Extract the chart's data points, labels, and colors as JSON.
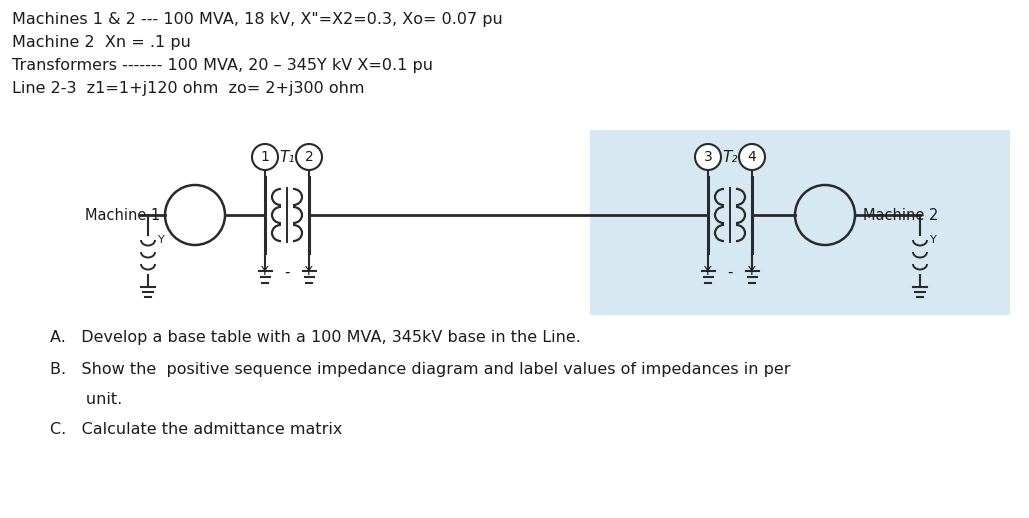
{
  "title_lines": [
    "Machines 1 & 2 --- 100 MVA, 18 kV, X\"=X2=0.3, Xo= 0.07 pu",
    "Machine 2  Xn = .1 pu",
    "Transformers ------- 100 MVA, 20 – 345Y kV X=0.1 pu",
    "Line 2-3  z1=1+j120 ohm  zo= 2+j300 ohm"
  ],
  "bg_color": "#ffffff",
  "text_color": "#1c1c1c",
  "diagram_bg": "#d6e8f2",
  "line_color": "#2a2a2a",
  "questions_A": "A.   Develop a base table with a 100 MVA, 345kV base in the Line.",
  "questions_B1": "B.   Show the  positive sequence impedance diagram and label values of impedances in per",
  "questions_B2": "       unit.",
  "questions_C": "C.   Calculate the admittance matrix",
  "node_labels": [
    "1",
    "2",
    "3",
    "4"
  ],
  "T_labels": [
    "T₁",
    "T₂"
  ],
  "machine1_label": "Machine 1",
  "machine2_label": "Machine 2"
}
